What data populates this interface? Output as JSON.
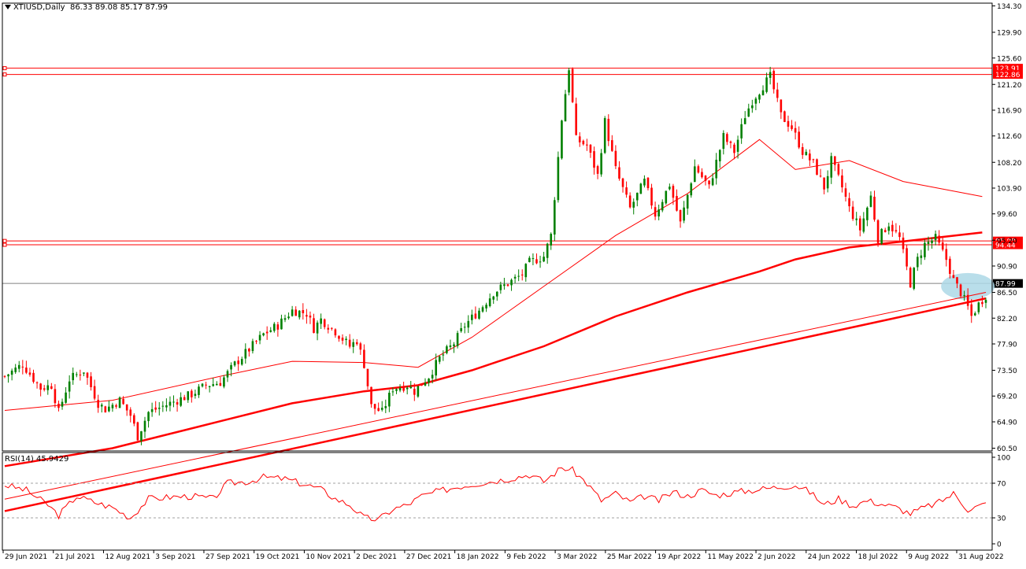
{
  "header": {
    "symbol": "XTIUSD,Daily",
    "ohlc": "86.33 89.08 85.17 87.99"
  },
  "rsi_header": {
    "label": "RSI(14) 45.9429"
  },
  "colors": {
    "bull": "#008000",
    "bear": "#ff0000",
    "ma": "#ff0000",
    "level_bg": "#ff0000",
    "price_line": "#808080",
    "highlight": "#add8e6"
  },
  "chart_data": [
    {
      "type": "candlestick",
      "title": "",
      "ylim": [
        60.5,
        134.3
      ],
      "y_ticks": [
        "134.30",
        "129.90",
        "125.60",
        "121.20",
        "116.90",
        "112.60",
        "108.20",
        "103.90",
        "99.60",
        "95.20",
        "90.90",
        "86.50",
        "82.20",
        "77.90",
        "73.50",
        "69.20",
        "64.90",
        "60.50"
      ],
      "x_ticks": [
        "29 Jun 2021",
        "21 Jul 2021",
        "12 Aug 2021",
        "3 Sep 2021",
        "27 Sep 2021",
        "19 Oct 2021",
        "10 Nov 2021",
        "2 Dec 2021",
        "27 Dec 2021",
        "18 Jan 2022",
        "9 Feb 2022",
        "3 Mar 2022",
        "25 Mar 2022",
        "19 Apr 2022",
        "11 May 2022",
        "2 Jun 2022",
        "24 Jun 2022",
        "18 Jul 2022",
        "9 Aug 2022",
        "31 Aug 2022"
      ],
      "close_path": [
        [
          0,
          72.5
        ],
        [
          5,
          74.5
        ],
        [
          10,
          70.5
        ],
        [
          13,
          71.0
        ],
        [
          15,
          66.5
        ],
        [
          18,
          72.0
        ],
        [
          22,
          73.5
        ],
        [
          26,
          68.0
        ],
        [
          28,
          67.0
        ],
        [
          32,
          68.5
        ],
        [
          35,
          66.0
        ],
        [
          37,
          62.5
        ],
        [
          40,
          66.5
        ],
        [
          44,
          67.5
        ],
        [
          48,
          68.5
        ],
        [
          52,
          69.5
        ],
        [
          56,
          71.0
        ],
        [
          60,
          71.5
        ],
        [
          64,
          74.5
        ],
        [
          68,
          77.0
        ],
        [
          72,
          79.5
        ],
        [
          76,
          81.0
        ],
        [
          80,
          83.5
        ],
        [
          84,
          83.0
        ],
        [
          86,
          80.5
        ],
        [
          88,
          82.0
        ],
        [
          92,
          80.0
        ],
        [
          96,
          77.5
        ],
        [
          98,
          78.5
        ],
        [
          100,
          74.5
        ],
        [
          102,
          67.5
        ],
        [
          105,
          66.5
        ],
        [
          108,
          70.5
        ],
        [
          112,
          71.0
        ],
        [
          114,
          70.0
        ],
        [
          118,
          72.5
        ],
        [
          121,
          75.5
        ],
        [
          125,
          78.0
        ],
        [
          128,
          81.0
        ],
        [
          132,
          83.5
        ],
        [
          136,
          86.5
        ],
        [
          140,
          88.0
        ],
        [
          144,
          89.5
        ],
        [
          146,
          91.5
        ],
        [
          150,
          92.5
        ],
        [
          152,
          96.0
        ],
        [
          155,
          115.5
        ],
        [
          157,
          124.0
        ],
        [
          159,
          112.0
        ],
        [
          162,
          111.0
        ],
        [
          165,
          106.0
        ],
        [
          167,
          115.0
        ],
        [
          170,
          107.0
        ],
        [
          174,
          100.5
        ],
        [
          178,
          105.0
        ],
        [
          181,
          99.5
        ],
        [
          185,
          104.5
        ],
        [
          188,
          98.0
        ],
        [
          192,
          107.5
        ],
        [
          196,
          104.0
        ],
        [
          200,
          112.5
        ],
        [
          203,
          110.0
        ],
        [
          206,
          116.0
        ],
        [
          208,
          118.5
        ],
        [
          211,
          121.0
        ],
        [
          213,
          122.5
        ],
        [
          216,
          116.0
        ],
        [
          219,
          114.0
        ],
        [
          222,
          110.0
        ],
        [
          225,
          108.0
        ],
        [
          228,
          104.0
        ],
        [
          230,
          108.5
        ],
        [
          233,
          104.0
        ],
        [
          235,
          100.5
        ],
        [
          238,
          97.0
        ],
        [
          241,
          102.5
        ],
        [
          243,
          95.5
        ],
        [
          246,
          98.0
        ],
        [
          249,
          95.5
        ],
        [
          252,
          88.0
        ],
        [
          254,
          92.0
        ],
        [
          256,
          94.5
        ],
        [
          259,
          95.5
        ],
        [
          262,
          92.0
        ],
        [
          264,
          88.5
        ],
        [
          266,
          86.5
        ],
        [
          268,
          84.0
        ],
        [
          269,
          82.5
        ],
        [
          271,
          84.5
        ],
        [
          273,
          86.0
        ]
      ],
      "moving_averages": [
        {
          "name": "",
          "style": "thin",
          "points": [
            [
              0,
              66.8
            ],
            [
              30,
              68.5
            ],
            [
              60,
              72.5
            ],
            [
              80,
              75.0
            ],
            [
              100,
              74.8
            ],
            [
              115,
              74.0
            ],
            [
              130,
              79.0
            ],
            [
              150,
              87.5
            ],
            [
              170,
              96.0
            ],
            [
              190,
              103.0
            ],
            [
              210,
              112.0
            ],
            [
              220,
              107.0
            ],
            [
              235,
              108.5
            ],
            [
              250,
              105.0
            ],
            [
              272,
              102.5
            ]
          ]
        },
        {
          "name": "",
          "style": "thick",
          "points": [
            [
              0,
              57.5
            ],
            [
              30,
              60.5
            ],
            [
              60,
              65.0
            ],
            [
              80,
              68.0
            ],
            [
              100,
              70.0
            ],
            [
              115,
              71.0
            ],
            [
              130,
              73.5
            ],
            [
              150,
              77.5
            ],
            [
              170,
              82.5
            ],
            [
              190,
              86.5
            ],
            [
              210,
              90.0
            ],
            [
              220,
              92.0
            ],
            [
              235,
              94.0
            ],
            [
              250,
              95.0
            ],
            [
              272,
              96.5
            ]
          ]
        }
      ],
      "trendlines": [
        {
          "name": "",
          "style": "thin",
          "from": [
            0,
            52.0
          ],
          "to": [
            273,
            86.5
          ]
        },
        {
          "name": "",
          "style": "thick",
          "from": [
            0,
            50.0
          ],
          "to": [
            273,
            85.5
          ]
        }
      ],
      "horizontal_levels": [
        {
          "value": 123.91,
          "label": "123.91"
        },
        {
          "value": 122.86,
          "label": "122.86"
        },
        {
          "value": 95.08,
          "label": "95.08"
        },
        {
          "value": 94.44,
          "label": "94.44"
        }
      ],
      "current_price": {
        "value": 87.99,
        "label": "87.99"
      },
      "highlight_zone": {
        "x_center": 268,
        "y_center": 87.5
      }
    },
    {
      "type": "line",
      "title": "",
      "ylim": [
        0,
        100
      ],
      "y_ticks": [
        "100",
        "70",
        "30",
        "0"
      ],
      "levels": [
        70,
        30
      ],
      "values": [
        [
          0,
          68
        ],
        [
          6,
          62
        ],
        [
          12,
          45
        ],
        [
          15,
          33
        ],
        [
          20,
          55
        ],
        [
          25,
          48
        ],
        [
          30,
          42
        ],
        [
          35,
          30
        ],
        [
          40,
          52
        ],
        [
          46,
          54
        ],
        [
          52,
          55
        ],
        [
          58,
          52
        ],
        [
          62,
          70
        ],
        [
          68,
          72
        ],
        [
          72,
          77
        ],
        [
          78,
          75
        ],
        [
          84,
          68
        ],
        [
          88,
          63
        ],
        [
          92,
          52
        ],
        [
          96,
          45
        ],
        [
          100,
          30
        ],
        [
          104,
          28
        ],
        [
          108,
          40
        ],
        [
          112,
          45
        ],
        [
          116,
          55
        ],
        [
          120,
          60
        ],
        [
          126,
          66
        ],
        [
          132,
          70
        ],
        [
          140,
          75
        ],
        [
          146,
          80
        ],
        [
          150,
          72
        ],
        [
          155,
          88
        ],
        [
          158,
          85
        ],
        [
          162,
          70
        ],
        [
          166,
          50
        ],
        [
          170,
          58
        ],
        [
          174,
          48
        ],
        [
          178,
          55
        ],
        [
          182,
          50
        ],
        [
          186,
          60
        ],
        [
          190,
          55
        ],
        [
          194,
          62
        ],
        [
          198,
          56
        ],
        [
          204,
          60
        ],
        [
          210,
          63
        ],
        [
          214,
          65
        ],
        [
          220,
          68
        ],
        [
          224,
          60
        ],
        [
          228,
          45
        ],
        [
          232,
          52
        ],
        [
          236,
          44
        ],
        [
          240,
          50
        ],
        [
          244,
          46
        ],
        [
          248,
          42
        ],
        [
          252,
          35
        ],
        [
          256,
          42
        ],
        [
          260,
          48
        ],
        [
          264,
          58
        ],
        [
          268,
          40
        ],
        [
          273,
          46
        ]
      ]
    }
  ]
}
